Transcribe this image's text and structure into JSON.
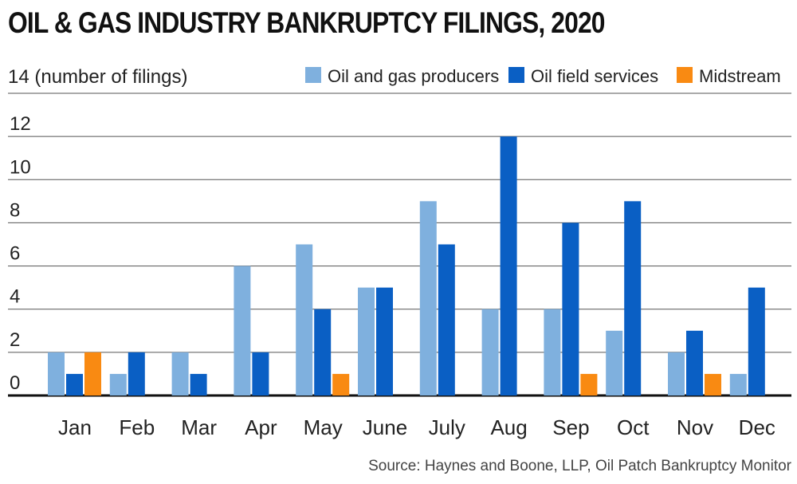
{
  "colors": {
    "producers": "#7fb0de",
    "services": "#0a5fc4",
    "midstream": "#f98a12",
    "grid": "#555555",
    "baseline": "#111111"
  },
  "chart_data": {
    "type": "bar",
    "title": "OIL & GAS INDUSTRY BANKRUPTCY FILINGS, 2020",
    "ylabel": "14 (number of filings)",
    "source": "Source: Haynes and Boone, LLP, Oil Patch Bankruptcy Monitor",
    "categories": [
      "Jan",
      "Feb",
      "Mar",
      "Apr",
      "May",
      "June",
      "July",
      "Aug",
      "Sep",
      "Oct",
      "Nov",
      "Dec"
    ],
    "yticks": [
      0,
      2,
      4,
      6,
      8,
      10,
      12
    ],
    "ylim": [
      0,
      14
    ],
    "grid": true,
    "legend_position": "top-right",
    "series": [
      {
        "name": "Oil and gas producers",
        "color_key": "producers",
        "values": [
          2,
          1,
          2,
          6,
          7,
          5,
          9,
          4,
          4,
          3,
          2,
          1
        ]
      },
      {
        "name": "Oil field services",
        "color_key": "services",
        "values": [
          1,
          2,
          1,
          2,
          4,
          5,
          7,
          12,
          8,
          9,
          3,
          5
        ]
      },
      {
        "name": "Midstream",
        "color_key": "midstream",
        "values": [
          2,
          0,
          0,
          0,
          1,
          0,
          0,
          0,
          1,
          0,
          1,
          0
        ]
      }
    ]
  }
}
